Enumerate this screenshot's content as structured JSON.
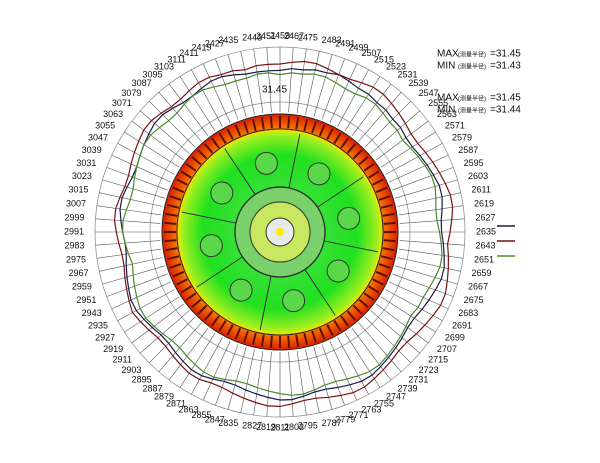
{
  "chart_data": {
    "type": "polar",
    "categories": [
      "2459",
      "2467",
      "2475",
      "2483",
      "2491",
      "2499",
      "2507",
      "2515",
      "2523",
      "2531",
      "2539",
      "2547",
      "2555",
      "2563",
      "2571",
      "2579",
      "2587",
      "2595",
      "2603",
      "2611",
      "2619",
      "2627",
      "2635",
      "2643",
      "2651",
      "2659",
      "2667",
      "2675",
      "2683",
      "2691",
      "2699",
      "2707",
      "2715",
      "2723",
      "2731",
      "2739",
      "2747",
      "2755",
      "2763",
      "2771",
      "2779",
      "2787",
      "2795",
      "2803",
      "2811",
      "2819",
      "2827",
      "2835",
      "2847",
      "2855",
      "2863",
      "2871",
      "2879",
      "2887",
      "2895",
      "2903",
      "2911",
      "2919",
      "2927",
      "2935",
      "2943",
      "2951",
      "2959",
      "2967",
      "2975",
      "2983",
      "2991",
      "2999",
      "3007",
      "3015",
      "3023",
      "3031",
      "3039",
      "3047",
      "3055",
      "3063",
      "3071",
      "3079",
      "3087",
      "3095",
      "3103",
      "3111",
      "2411",
      "2419",
      "2427",
      "2435",
      "2443",
      "2451"
    ],
    "rlim": [
      31.42,
      31.46
    ],
    "ring_label": "31.45",
    "series": [
      {
        "color": "#1a1a4a",
        "values": [
          31.449,
          31.45,
          31.45,
          31.451,
          31.451,
          31.452,
          31.451,
          31.45,
          31.45,
          31.449,
          31.449,
          31.448,
          31.448,
          31.447,
          31.447,
          31.448,
          31.449,
          31.45,
          31.451,
          31.451,
          31.45,
          31.449,
          31.449,
          31.45,
          31.451,
          31.452,
          31.452,
          31.451,
          31.45,
          31.449,
          31.448,
          31.448,
          31.449,
          31.45,
          31.451,
          31.452,
          31.453,
          31.453,
          31.452,
          31.451,
          31.45,
          31.45,
          31.451,
          31.452,
          31.452,
          31.451,
          31.45,
          31.449,
          31.448,
          31.448,
          31.449,
          31.45,
          31.45,
          31.449,
          31.448,
          31.447,
          31.447,
          31.448,
          31.449,
          31.45,
          31.45,
          31.449,
          31.448,
          31.447,
          31.446,
          31.446,
          31.447,
          31.448,
          31.449,
          31.449,
          31.448,
          31.447,
          31.447,
          31.448,
          31.449,
          31.45,
          31.451,
          31.451,
          31.45,
          31.449,
          31.449,
          31.45,
          31.451,
          31.451,
          31.45,
          31.449,
          31.449,
          31.449
        ]
      },
      {
        "color": "#7a1010",
        "values": [
          31.452,
          31.453,
          31.454,
          31.454,
          31.453,
          31.452,
          31.452,
          31.453,
          31.454,
          31.454,
          31.453,
          31.452,
          31.451,
          31.45,
          31.45,
          31.451,
          31.452,
          31.453,
          31.454,
          31.455,
          31.455,
          31.454,
          31.453,
          31.452,
          31.453,
          31.454,
          31.455,
          31.456,
          31.456,
          31.455,
          31.454,
          31.453,
          31.452,
          31.452,
          31.453,
          31.454,
          31.455,
          31.456,
          31.456,
          31.455,
          31.454,
          31.453,
          31.453,
          31.454,
          31.455,
          31.455,
          31.454,
          31.453,
          31.452,
          31.451,
          31.451,
          31.452,
          31.452,
          31.451,
          31.45,
          31.449,
          31.449,
          31.45,
          31.451,
          31.452,
          31.451,
          31.45,
          31.449,
          31.448,
          31.448,
          31.449,
          31.45,
          31.451,
          31.451,
          31.45,
          31.449,
          31.449,
          31.45,
          31.451,
          31.452,
          31.453,
          31.453,
          31.452,
          31.451,
          31.451,
          31.452,
          31.453,
          31.453,
          31.452,
          31.452,
          31.451,
          31.452,
          31.452
        ]
      },
      {
        "color": "#4a8a2a",
        "values": [
          31.447,
          31.448,
          31.448,
          31.449,
          31.449,
          31.448,
          31.447,
          31.447,
          31.448,
          31.448,
          31.447,
          31.446,
          31.446,
          31.445,
          31.446,
          31.447,
          31.448,
          31.449,
          31.449,
          31.448,
          31.447,
          31.447,
          31.448,
          31.449,
          31.45,
          31.45,
          31.449,
          31.448,
          31.447,
          31.447,
          31.446,
          31.447,
          31.448,
          31.449,
          31.45,
          31.451,
          31.451,
          31.45,
          31.449,
          31.448,
          31.448,
          31.449,
          31.45,
          31.45,
          31.449,
          31.448,
          31.447,
          31.446,
          31.446,
          31.447,
          31.448,
          31.448,
          31.447,
          31.446,
          31.445,
          31.445,
          31.446,
          31.447,
          31.448,
          31.448,
          31.447,
          31.446,
          31.445,
          31.444,
          31.445,
          31.446,
          31.447,
          31.447,
          31.446,
          31.445,
          31.445,
          31.446,
          31.447,
          31.448,
          31.449,
          31.449,
          31.448,
          31.447,
          31.447,
          31.448,
          31.449,
          31.449,
          31.448,
          31.447,
          31.447,
          31.447,
          31.448,
          31.448
        ]
      }
    ],
    "notes": [
      {
        "label": "MAX",
        "note": "(测量半径)",
        "value": "=31.45"
      },
      {
        "label": "MIN",
        "note": "(测量半径)",
        "value": "=31.43"
      },
      {
        "label": "MAX",
        "note": "(测量半径)",
        "value": "=31.45"
      },
      {
        "label": "MIN",
        "note": "(测量半径)",
        "value": "=31.44"
      }
    ]
  }
}
